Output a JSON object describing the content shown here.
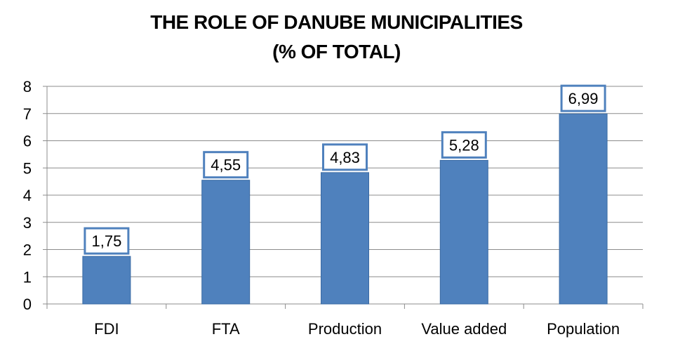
{
  "chart_data": {
    "type": "bar",
    "title_lines": [
      "THE ROLE OF DANUBE MUNICIPALITIES",
      "(% OF TOTAL)"
    ],
    "categories": [
      "FDI",
      "FTA",
      "Production",
      "Value added",
      "Population"
    ],
    "values": [
      1.75,
      4.55,
      4.83,
      5.28,
      6.99
    ],
    "data_labels": [
      "1,75",
      "4,55",
      "4,83",
      "5,28",
      "6,99"
    ],
    "y_ticks": [
      "0",
      "1",
      "2",
      "3",
      "4",
      "5",
      "6",
      "7",
      "8"
    ],
    "ylim": [
      0,
      8
    ],
    "grid": true,
    "legend": "none"
  },
  "colors": {
    "bar": "#4f81bd",
    "bar_edge": "#3a6aa3",
    "label_border": "#4f81bd",
    "grid": "#8c8c8c",
    "axis": "#8c8c8c",
    "text": "#000000"
  }
}
